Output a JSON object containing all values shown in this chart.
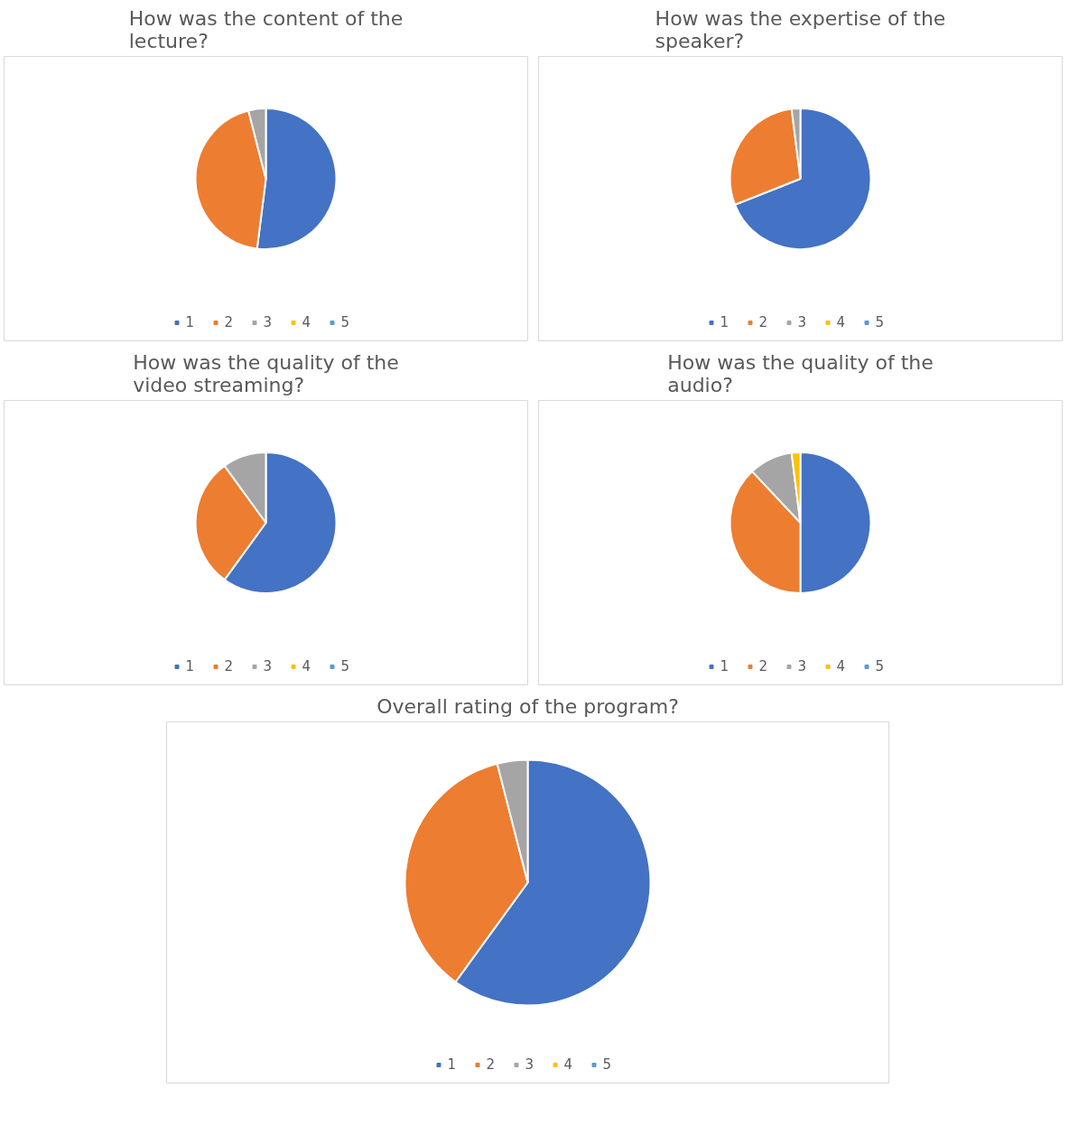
{
  "chart_data": [
    {
      "type": "pie",
      "title": "How was the content of the lecture?",
      "categories": [
        "1",
        "2",
        "3",
        "4",
        "5"
      ],
      "values": [
        52,
        44,
        4,
        0,
        0
      ],
      "colors": [
        "#4472c4",
        "#ed7d31",
        "#a5a5a5",
        "#ffc000",
        "#5b9bd5"
      ],
      "legend": "bottom"
    },
    {
      "type": "pie",
      "title": "How was the expertise of the speaker?",
      "categories": [
        "1",
        "2",
        "3",
        "4",
        "5"
      ],
      "values": [
        69,
        29,
        2,
        0,
        0
      ],
      "colors": [
        "#4472c4",
        "#ed7d31",
        "#a5a5a5",
        "#ffc000",
        "#5b9bd5"
      ],
      "legend": "bottom"
    },
    {
      "type": "pie",
      "title": "How was the quality of the video streaming?",
      "categories": [
        "1",
        "2",
        "3",
        "4",
        "5"
      ],
      "values": [
        60,
        30,
        10,
        0,
        0
      ],
      "colors": [
        "#4472c4",
        "#ed7d31",
        "#a5a5a5",
        "#ffc000",
        "#5b9bd5"
      ],
      "legend": "bottom"
    },
    {
      "type": "pie",
      "title": "How was the quality of the audio?",
      "categories": [
        "1",
        "2",
        "3",
        "4",
        "5"
      ],
      "values": [
        50,
        38,
        10,
        2,
        0
      ],
      "colors": [
        "#4472c4",
        "#ed7d31",
        "#a5a5a5",
        "#ffc000",
        "#5b9bd5"
      ],
      "legend": "bottom"
    },
    {
      "type": "pie",
      "title": "Overall rating of the program?",
      "categories": [
        "1",
        "2",
        "3",
        "4",
        "5"
      ],
      "values": [
        60,
        36,
        4,
        0,
        0
      ],
      "colors": [
        "#4472c4",
        "#ed7d31",
        "#a5a5a5",
        "#ffc000",
        "#5b9bd5"
      ],
      "legend": "bottom"
    }
  ]
}
